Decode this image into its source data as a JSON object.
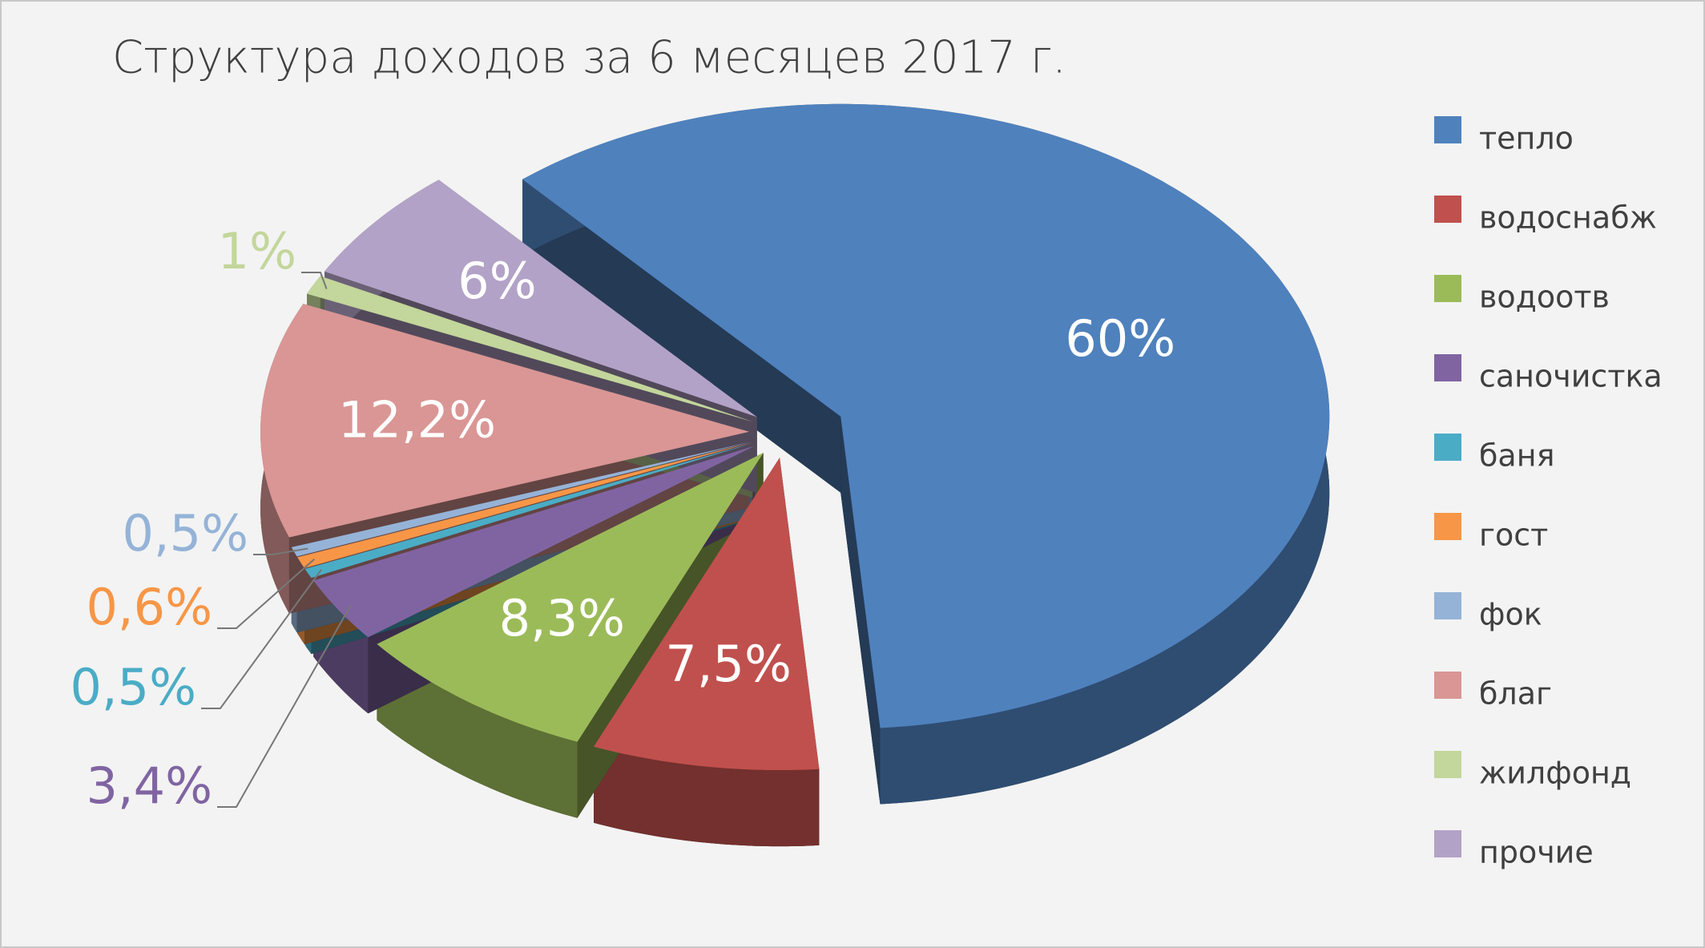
{
  "chart_data": {
    "type": "pie",
    "title": "Структура доходов за 6 месяцев 2017 г.",
    "categories": [
      "тепло",
      "водоснабж",
      "водоотв",
      "саночистка",
      "баня",
      "гост",
      "фок",
      "благ",
      "жилфонд",
      "прочие"
    ],
    "values": [
      60,
      7.5,
      8.3,
      3.4,
      0.5,
      0.6,
      0.5,
      12.2,
      1,
      6
    ],
    "value_labels": [
      "60%",
      "7,5%",
      "8,3%",
      "3,4%",
      "0,5%",
      "0,6%",
      "0,5%",
      "12,2%",
      "1%",
      "6%"
    ],
    "colors": [
      "#4f81bd",
      "#c0504d",
      "#9bbb59",
      "#8064a2",
      "#4bacc6",
      "#f79646",
      "#95b3d7",
      "#d99694",
      "#c3d69b",
      "#b3a2c7"
    ],
    "legend": "right"
  }
}
